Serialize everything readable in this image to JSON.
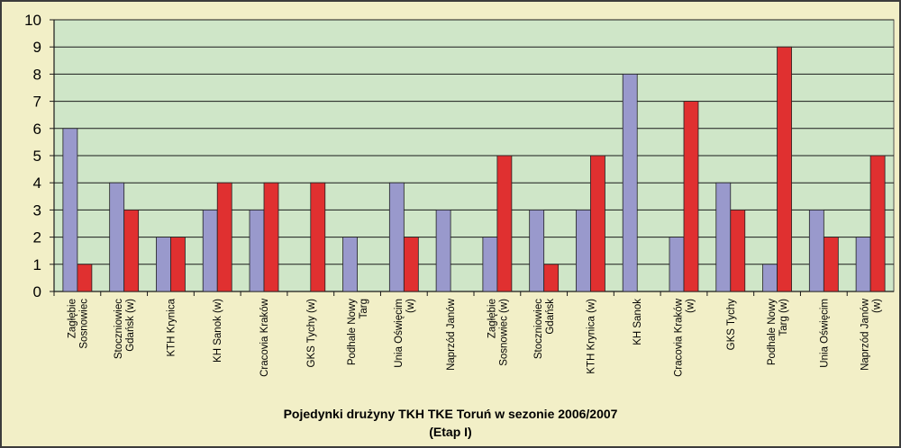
{
  "chart_data": {
    "type": "bar",
    "title": "Pojedynki drużyny TKH TKE Toruń w sezonie 2006/2007",
    "subtitle": "(Etap I)",
    "xlabel": "",
    "ylabel": "",
    "ylim": [
      0,
      10
    ],
    "yticks": [
      0,
      1,
      2,
      3,
      4,
      5,
      6,
      7,
      8,
      9,
      10
    ],
    "grid": true,
    "legend": "none",
    "categories": [
      [
        "Zagłębie",
        "Sosnowiec"
      ],
      [
        "Stoczniowiec",
        "Gdańsk (w)"
      ],
      [
        "KTH Krynica"
      ],
      [
        "KH Sanok (w)"
      ],
      [
        "Cracovia Kraków"
      ],
      [
        "GKS Tychy (w)"
      ],
      [
        "Podhale Nowy",
        "Targ"
      ],
      [
        "Unia Oświęcim",
        "(w)"
      ],
      [
        "Naprzód Janów"
      ],
      [
        "Zagłębie",
        "Sosnowiec (w)"
      ],
      [
        "Stoczniowiec",
        "Gdańsk"
      ],
      [
        "KTH Krynica (w)"
      ],
      [
        "KH Sanok"
      ],
      [
        "Cracovia Kraków",
        "(w)"
      ],
      [
        "GKS Tychy"
      ],
      [
        "Podhale Nowy",
        "Targ (w)"
      ],
      [
        "Unia Oświęcim"
      ],
      [
        "Naprzód Janów",
        "(w)"
      ]
    ],
    "series": [
      {
        "color": "#9999cc",
        "values": [
          6,
          4,
          2,
          3,
          3,
          0,
          2,
          4,
          3,
          2,
          3,
          3,
          8,
          2,
          4,
          1,
          3,
          2
        ]
      },
      {
        "color": "#e03030",
        "values": [
          1,
          3,
          2,
          4,
          4,
          4,
          0,
          2,
          0,
          5,
          1,
          5,
          0,
          7,
          3,
          9,
          2,
          5
        ]
      }
    ],
    "plot_background": "#cfe6c8",
    "frame_background": "#f2efc7"
  }
}
